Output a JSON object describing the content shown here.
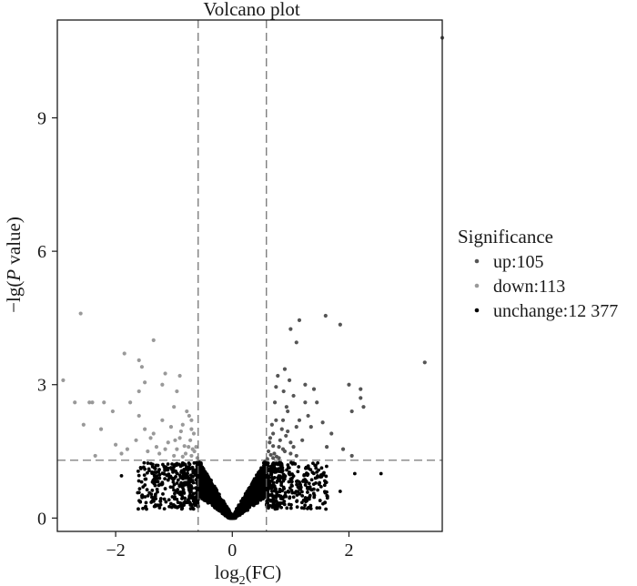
{
  "chart_data": {
    "type": "scatter",
    "title": "Volcano plot",
    "xlabel": {
      "prefix": "log",
      "sub": "2",
      "suffix": "(FC)"
    },
    "ylabel": {
      "prefix": "−lg(",
      "italic": "P",
      "suffix": " value)"
    },
    "xlim": [
      -3.0,
      3.6
    ],
    "ylim": [
      -0.3,
      11.2
    ],
    "xticks": [
      -2,
      0,
      2
    ],
    "xtick_labels": [
      "−2",
      "0",
      "2"
    ],
    "yticks": [
      0,
      3,
      6,
      9
    ],
    "ytick_labels": [
      "0",
      "3",
      "6",
      "9"
    ],
    "grid": false,
    "thresholds": {
      "x": [
        -0.585,
        0.585
      ],
      "y": 1.3
    },
    "legend": {
      "title": "Significance",
      "placement": "right",
      "entries": [
        {
          "label": "up:105",
          "color": "#555555"
        },
        {
          "label": "down:113",
          "color": "#999999"
        },
        {
          "label": "unchange:12 377",
          "color": "#000000"
        }
      ]
    },
    "series": [
      {
        "key": "up",
        "color": "#555555",
        "points": [
          [
            3.6,
            10.8
          ],
          [
            3.3,
            3.5
          ],
          [
            1.6,
            4.55
          ],
          [
            1.85,
            4.35
          ],
          [
            1.15,
            4.45
          ],
          [
            1.0,
            4.25
          ],
          [
            1.1,
            3.95
          ],
          [
            2.0,
            3.0
          ],
          [
            2.2,
            2.9
          ],
          [
            2.2,
            2.7
          ],
          [
            2.25,
            2.5
          ],
          [
            2.05,
            2.4
          ],
          [
            1.4,
            2.9
          ],
          [
            1.25,
            2.6
          ],
          [
            1.3,
            2.3
          ],
          [
            1.45,
            2.6
          ],
          [
            1.1,
            2.05
          ],
          [
            0.8,
            1.6
          ],
          [
            0.85,
            2.0
          ],
          [
            0.7,
            1.9
          ],
          [
            0.95,
            2.4
          ],
          [
            0.75,
            2.2
          ],
          [
            1.05,
            2.75
          ],
          [
            0.9,
            1.5
          ],
          [
            1.0,
            1.7
          ],
          [
            0.72,
            1.45
          ],
          [
            0.78,
            3.2
          ],
          [
            0.9,
            3.35
          ],
          [
            0.88,
            2.85
          ],
          [
            0.65,
            1.8
          ],
          [
            0.62,
            1.5
          ],
          [
            0.7,
            1.62
          ],
          [
            0.68,
            2.1
          ],
          [
            0.82,
            1.75
          ],
          [
            0.92,
            1.85
          ],
          [
            1.2,
            1.75
          ],
          [
            1.35,
            2.05
          ],
          [
            1.55,
            2.15
          ],
          [
            1.7,
            1.9
          ],
          [
            1.9,
            1.55
          ],
          [
            2.05,
            1.4
          ],
          [
            1.05,
            1.6
          ],
          [
            0.95,
            1.95
          ],
          [
            0.76,
            1.38
          ],
          [
            0.66,
            1.42
          ],
          [
            0.73,
            2.6
          ],
          [
            0.87,
            2.2
          ],
          [
            1.15,
            2.2
          ],
          [
            1.62,
            1.6
          ],
          [
            0.98,
            3.1
          ],
          [
            1.25,
            3.0
          ],
          [
            0.75,
            2.95
          ],
          [
            0.93,
            2.5
          ],
          [
            0.64,
            1.7
          ],
          [
            0.8,
            1.35
          ],
          [
            0.87,
            1.55
          ],
          [
            1.0,
            1.45
          ],
          [
            1.1,
            1.4
          ],
          [
            0.7,
            1.35
          ],
          [
            0.6,
            1.33
          ]
        ]
      },
      {
        "key": "down",
        "color": "#999999",
        "points": [
          [
            -2.6,
            4.6
          ],
          [
            -2.9,
            3.1
          ],
          [
            -1.35,
            4.0
          ],
          [
            -1.85,
            3.7
          ],
          [
            -1.6,
            3.55
          ],
          [
            -1.55,
            3.4
          ],
          [
            -1.5,
            3.05
          ],
          [
            -0.9,
            3.2
          ],
          [
            -2.7,
            2.6
          ],
          [
            -2.45,
            2.6
          ],
          [
            -2.4,
            2.6
          ],
          [
            -2.2,
            2.6
          ],
          [
            -2.05,
            2.4
          ],
          [
            -2.25,
            2.0
          ],
          [
            -2.55,
            2.1
          ],
          [
            -1.75,
            2.6
          ],
          [
            -1.6,
            2.85
          ],
          [
            -1.2,
            3.0
          ],
          [
            -1.15,
            3.25
          ],
          [
            -1.0,
            2.5
          ],
          [
            -0.95,
            2.85
          ],
          [
            -0.85,
            2.1
          ],
          [
            -0.7,
            2.0
          ],
          [
            -0.75,
            1.6
          ],
          [
            -0.65,
            1.5
          ],
          [
            -0.9,
            1.8
          ],
          [
            -1.1,
            1.7
          ],
          [
            -1.3,
            1.6
          ],
          [
            -1.45,
            1.5
          ],
          [
            -1.8,
            1.55
          ],
          [
            -2.0,
            1.65
          ],
          [
            -0.8,
            1.45
          ],
          [
            -0.95,
            1.55
          ],
          [
            -1.05,
            2.05
          ],
          [
            -0.7,
            2.2
          ],
          [
            -0.6,
            1.35
          ],
          [
            -0.72,
            1.75
          ],
          [
            -0.88,
            1.95
          ],
          [
            -1.2,
            2.2
          ],
          [
            -1.35,
            1.9
          ],
          [
            -1.5,
            2.0
          ],
          [
            -1.65,
            1.75
          ],
          [
            -0.78,
            2.4
          ],
          [
            -0.62,
            1.6
          ],
          [
            -0.66,
            1.9
          ],
          [
            -1.0,
            1.4
          ],
          [
            -1.25,
            1.45
          ],
          [
            -1.4,
            1.8
          ],
          [
            -0.85,
            1.38
          ],
          [
            -0.7,
            1.4
          ],
          [
            -2.35,
            1.4
          ],
          [
            -1.9,
            1.45
          ],
          [
            -1.15,
            1.55
          ],
          [
            -0.98,
            1.75
          ],
          [
            -0.82,
            1.62
          ],
          [
            -0.74,
            2.3
          ],
          [
            -0.68,
            1.55
          ],
          [
            -1.6,
            2.3
          ]
        ]
      }
    ],
    "unchange_summary": {
      "color": "#000000",
      "pattern": "V-shaped dense cloud from (0, 0) rising toward |log2FC| 0.585 at P threshold 1.3, plus scattered points out to |log2FC| about 2.6 below the threshold",
      "points": [
        [
          0,
          0.0
        ],
        [
          0.1,
          0.1
        ],
        [
          -0.1,
          0.1
        ],
        [
          0.2,
          0.25
        ],
        [
          -0.2,
          0.25
        ],
        [
          0.3,
          0.45
        ],
        [
          -0.3,
          0.45
        ],
        [
          0.4,
          0.7
        ],
        [
          -0.4,
          0.7
        ],
        [
          0.5,
          1.0
        ],
        [
          -0.5,
          1.0
        ],
        [
          0.55,
          1.2
        ],
        [
          -0.55,
          1.2
        ],
        [
          -1.9,
          0.95
        ],
        [
          -1.55,
          0.5
        ],
        [
          1.6,
          0.8
        ],
        [
          1.85,
          0.6
        ],
        [
          2.1,
          1.0
        ],
        [
          2.55,
          1.0
        ],
        [
          -1.5,
          1.1
        ],
        [
          -1.2,
          0.8
        ],
        [
          1.2,
          0.5
        ],
        [
          -0.9,
          0.55
        ],
        [
          0.9,
          0.5
        ],
        [
          -0.7,
          0.3
        ],
        [
          0.7,
          0.3
        ]
      ]
    }
  }
}
